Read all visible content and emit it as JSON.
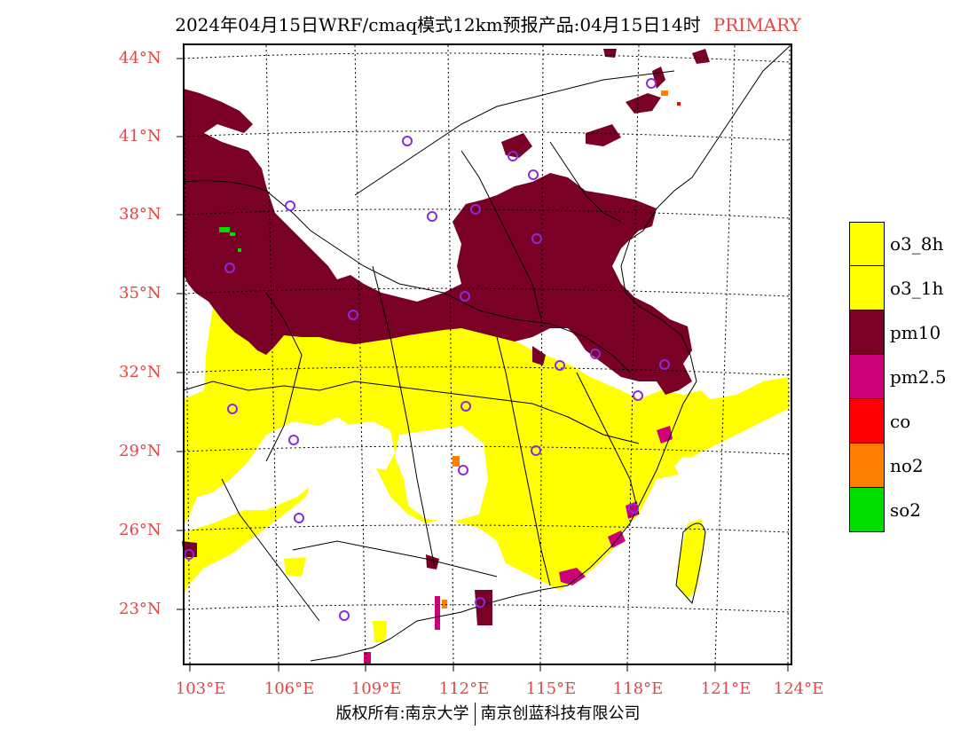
{
  "header": {
    "title": "2024年04月15日WRF/cmaq模式12km预报产品:04月15日14时",
    "tag": "PRIMARY"
  },
  "map": {
    "lat_ticks": [
      "44°N",
      "41°N",
      "38°N",
      "35°N",
      "32°N",
      "29°N",
      "26°N",
      "23°N"
    ],
    "lon_ticks": [
      "103°E",
      "106°E",
      "109°E",
      "112°E",
      "115°E",
      "118°E",
      "121°E",
      "124°E"
    ],
    "colors": {
      "o3_8h": "#ffff00",
      "o3_1h": "#ffff00",
      "pm10": "#7a0026",
      "pm2_5": "#cc0077",
      "co": "#ff0000",
      "no2": "#ff7f00",
      "so2": "#00dd00",
      "station": "#8a2be2",
      "label": "#e64545"
    }
  },
  "legend": {
    "items": [
      {
        "label": "o3_8h",
        "color": "#ffff00"
      },
      {
        "label": "o3_1h",
        "color": "#ffff00"
      },
      {
        "label": "pm10",
        "color": "#7a0026"
      },
      {
        "label": "pm2.5",
        "color": "#cc0077"
      },
      {
        "label": "co",
        "color": "#ff0000"
      },
      {
        "label": "no2",
        "color": "#ff7f00"
      },
      {
        "label": "so2",
        "color": "#00dd00"
      }
    ]
  },
  "footer": {
    "left": "版权所有:南京大学",
    "right": "南京创蓝科技有限公司"
  }
}
